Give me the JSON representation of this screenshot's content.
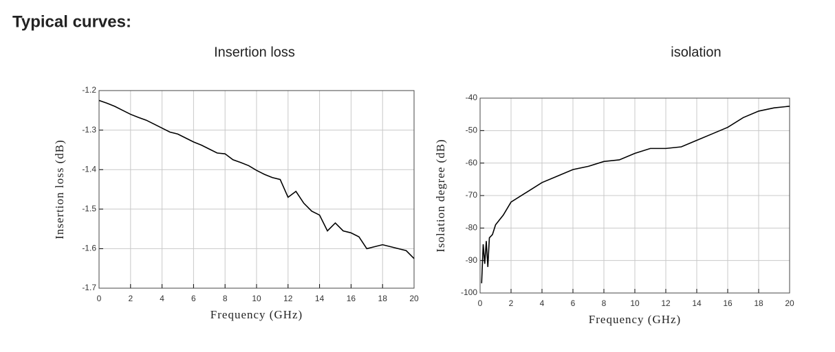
{
  "heading": "Typical curves:",
  "chart_data": [
    {
      "type": "line",
      "title": "Insertion loss",
      "xlabel": "Frequency (GHz)",
      "ylabel": "Insertion loss (dB)",
      "xlim": [
        0,
        20
      ],
      "ylim": [
        -1.7,
        -1.2
      ],
      "xticks": [
        0,
        2,
        4,
        6,
        8,
        10,
        12,
        14,
        16,
        18,
        20
      ],
      "yticks": [
        -1.2,
        -1.3,
        -1.4,
        -1.5,
        -1.6,
        -1.7
      ],
      "grid": true,
      "x": [
        0,
        0.5,
        1,
        1.5,
        2,
        2.5,
        3,
        3.5,
        4,
        4.5,
        5,
        5.5,
        6,
        6.5,
        7,
        7.5,
        8,
        8.5,
        9,
        9.5,
        10,
        10.5,
        11,
        11.5,
        12,
        12.5,
        13,
        13.5,
        14,
        14.5,
        15,
        15.5,
        16,
        16.5,
        17,
        17.5,
        18,
        18.5,
        19,
        19.5,
        20
      ],
      "series": [
        {
          "color": "#000000",
          "values": [
            -1.225,
            -1.232,
            -1.24,
            -1.25,
            -1.26,
            -1.268,
            -1.275,
            -1.285,
            -1.295,
            -1.305,
            -1.31,
            -1.32,
            -1.33,
            -1.338,
            -1.348,
            -1.358,
            -1.36,
            -1.375,
            -1.382,
            -1.39,
            -1.402,
            -1.412,
            -1.42,
            -1.425,
            -1.47,
            -1.455,
            -1.485,
            -1.505,
            -1.515,
            -1.555,
            -1.535,
            -1.555,
            -1.56,
            -1.57,
            -1.6,
            -1.595,
            -1.59,
            -1.595,
            -1.6,
            -1.605,
            -1.625
          ]
        }
      ]
    },
    {
      "type": "line",
      "title": "isolation",
      "xlabel": "Frequency (GHz)",
      "ylabel": "Isolation degree (dB)",
      "xlim": [
        0,
        20
      ],
      "ylim": [
        -100,
        -40
      ],
      "xticks": [
        0,
        2,
        4,
        6,
        8,
        10,
        12,
        14,
        16,
        18,
        20
      ],
      "yticks": [
        -40,
        -50,
        -60,
        -70,
        -80,
        -90,
        -100
      ],
      "grid": true,
      "x": [
        0.1,
        0.2,
        0.3,
        0.4,
        0.5,
        0.6,
        0.8,
        1,
        1.5,
        2,
        3,
        4,
        5,
        6,
        7,
        8,
        9,
        10,
        11,
        12,
        13,
        14,
        15,
        16,
        17,
        18,
        19,
        20
      ],
      "series": [
        {
          "color": "#000000",
          "values": [
            -97,
            -85,
            -91,
            -84,
            -92,
            -83,
            -82,
            -79,
            -76,
            -72,
            -69,
            -66,
            -64,
            -62,
            -61,
            -59.5,
            -59,
            -57,
            -55.5,
            -55.5,
            -55,
            -53,
            -51,
            -49,
            -46,
            -44,
            -43,
            -42.5
          ]
        }
      ]
    }
  ]
}
